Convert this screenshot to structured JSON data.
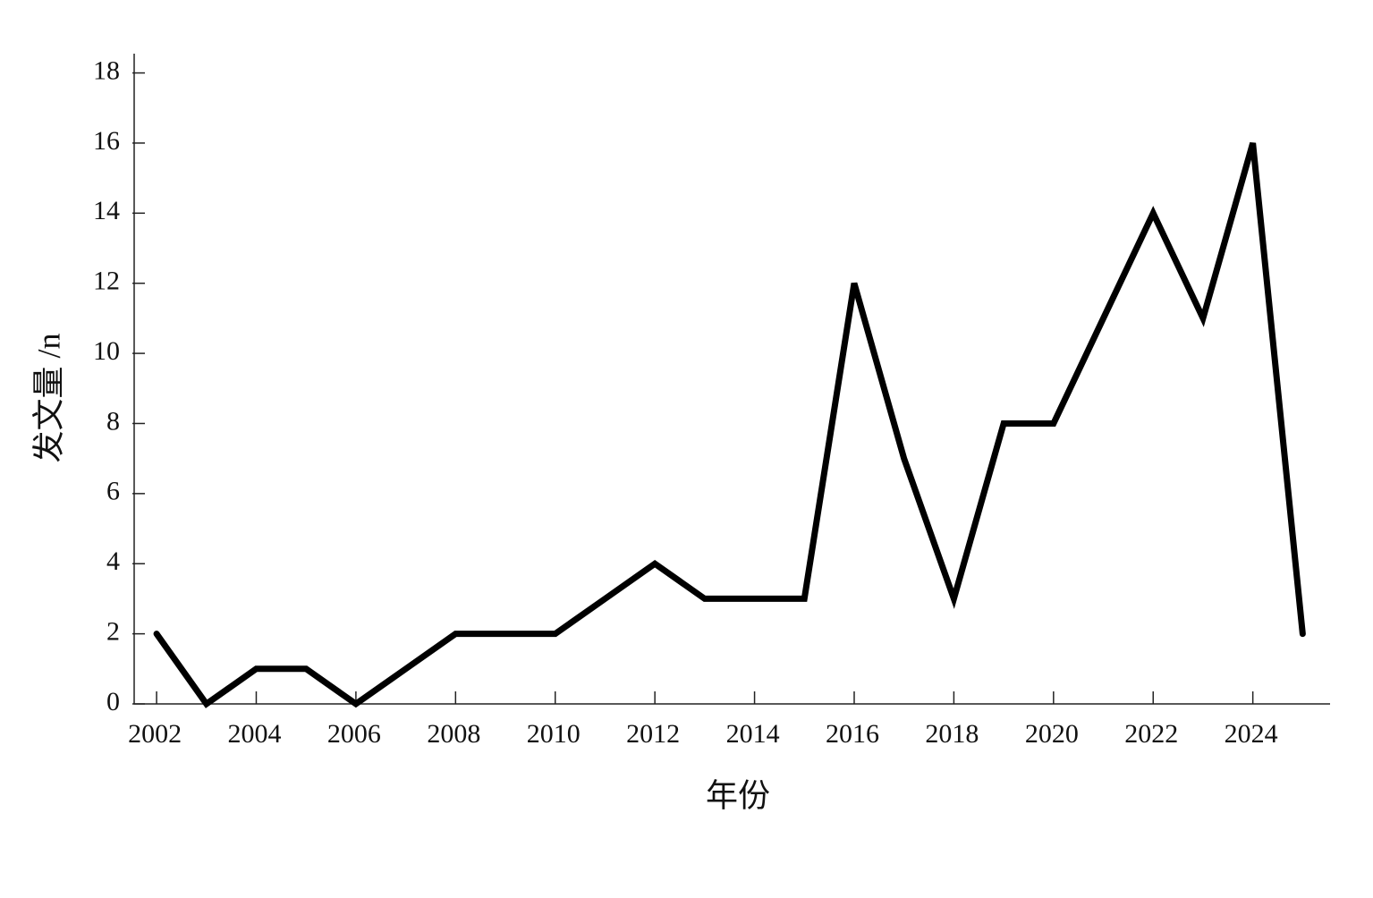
{
  "chart_data": {
    "type": "line",
    "x_label": "年份",
    "y_label": "发文量 /n",
    "x": [
      2002,
      2003,
      2004,
      2005,
      2006,
      2007,
      2008,
      2009,
      2010,
      2011,
      2012,
      2013,
      2014,
      2015,
      2016,
      2017,
      2018,
      2019,
      2020,
      2021,
      2022,
      2023,
      2024,
      2025
    ],
    "values": [
      2,
      0,
      1,
      1,
      0,
      1,
      2,
      2,
      2,
      3,
      4,
      3,
      3,
      3,
      12,
      7,
      3,
      8,
      8,
      11,
      14,
      11,
      16,
      2
    ],
    "color": "#000000",
    "xlim": [
      2001.55,
      2025.55
    ],
    "xticks": [
      2002,
      2004,
      2006,
      2008,
      2010,
      2012,
      2014,
      2016,
      2018,
      2020,
      2022,
      2024
    ],
    "ylim": [
      0,
      18.55
    ],
    "yticks": [
      0,
      2,
      4,
      6,
      8,
      10,
      12,
      14,
      16,
      18
    ]
  }
}
